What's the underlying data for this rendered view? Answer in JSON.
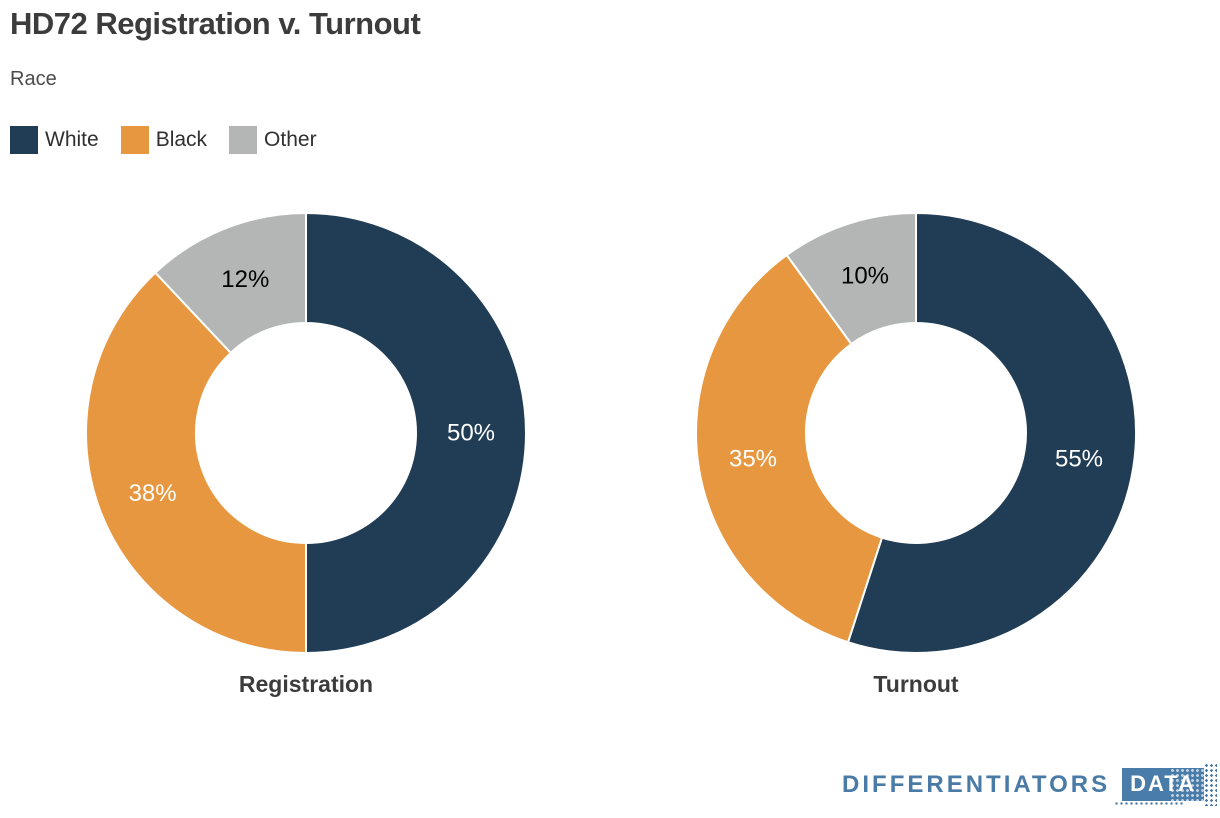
{
  "header": {
    "title": "HD72 Registration v. Turnout",
    "subtitle": "Race"
  },
  "legend": {
    "items": [
      {
        "label": "White",
        "color": "#213d56"
      },
      {
        "label": "Black",
        "color": "#e7973f"
      },
      {
        "label": "Other",
        "color": "#b3b6b5"
      }
    ]
  },
  "chart_data": [
    {
      "type": "pie",
      "subtype": "donut",
      "title": "Registration",
      "categories": [
        "White",
        "Black",
        "Other"
      ],
      "values": [
        50,
        38,
        12
      ],
      "labels": [
        "50%",
        "38%",
        "12%"
      ],
      "colors": [
        "#213d56",
        "#e7973f",
        "#b3b6b5"
      ],
      "label_colors": [
        "#ffffff",
        "#ffffff",
        "#000000"
      ],
      "start_angle": 0,
      "direction": "clockwise",
      "inner_radius_pct": 50,
      "legend_position": "top-left"
    },
    {
      "type": "pie",
      "subtype": "donut",
      "title": "Turnout",
      "categories": [
        "White",
        "Black",
        "Other"
      ],
      "values": [
        55,
        35,
        10
      ],
      "labels": [
        "55%",
        "35%",
        "10%"
      ],
      "colors": [
        "#213d56",
        "#e7973f",
        "#b3b6b5"
      ],
      "label_colors": [
        "#ffffff",
        "#ffffff",
        "#000000"
      ],
      "start_angle": 0,
      "direction": "clockwise",
      "inner_radius_pct": 50,
      "legend_position": "top-left"
    }
  ],
  "footer": {
    "brand": "DIFFERENTIATORS",
    "brand_badge": "DATA",
    "brand_color": "#4a7ba7"
  }
}
